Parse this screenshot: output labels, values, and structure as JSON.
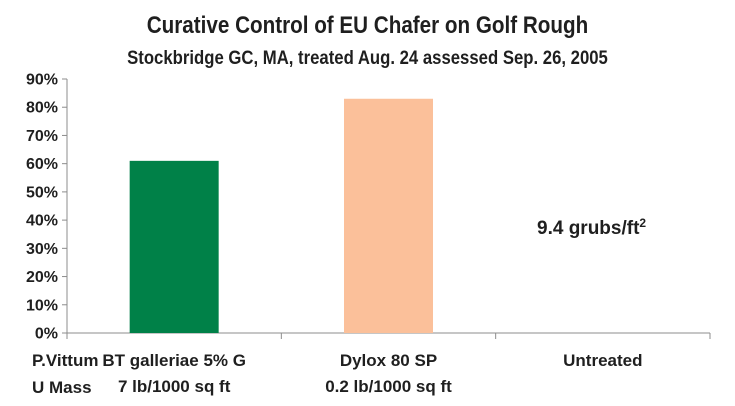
{
  "chart_data": {
    "type": "bar",
    "title": "Curative Control of EU Chafer on Golf Rough",
    "subtitle": "Stockbridge GC, MA, treated Aug. 24 assessed Sep. 26, 2005",
    "categories": [
      [
        "BT galleriae 5% G",
        "7 lb/1000 sq ft"
      ],
      [
        "Dylox 80 SP",
        "0.2 lb/1000 sq ft"
      ],
      [
        "Untreated",
        ""
      ]
    ],
    "values": [
      61,
      83,
      0
    ],
    "colors": [
      "#008148",
      "#fbc09a",
      "#ffffff"
    ],
    "ylim": [
      0,
      90
    ],
    "yticks": [
      0,
      10,
      20,
      30,
      40,
      50,
      60,
      70,
      80,
      90
    ],
    "ytick_suffix": "%",
    "grid": false,
    "annotation": {
      "text": "9.4 grubs/ft",
      "sup": "2"
    }
  },
  "side_labels": {
    "line1": "P.Vittum",
    "line2": "U Mass"
  }
}
